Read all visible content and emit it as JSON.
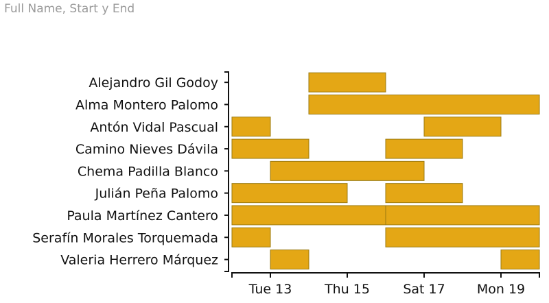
{
  "header": {
    "title": "Full Name, Start y End"
  },
  "chart_data": {
    "type": "bar",
    "orientation": "horizontal-gantt",
    "title": "",
    "xlabel": "",
    "ylabel": "",
    "x_domain": [
      "2023-06-12",
      "2023-06-20"
    ],
    "x_ticks": [
      {
        "label": "Tue 13",
        "date": "2023-06-13"
      },
      {
        "label": "Thu 15",
        "date": "2023-06-15"
      },
      {
        "label": "Sat 17",
        "date": "2023-06-17"
      },
      {
        "label": "Mon 19",
        "date": "2023-06-19"
      }
    ],
    "bar_color": "#E4A715",
    "grid": false,
    "rows": [
      {
        "name": "Alejandro Gil Godoy",
        "segments": [
          {
            "start": "2023-06-14",
            "end": "2023-06-16"
          }
        ]
      },
      {
        "name": "Alma Montero Palomo",
        "segments": [
          {
            "start": "2023-06-14",
            "end": "2023-06-20"
          }
        ]
      },
      {
        "name": "Antón Vidal Pascual",
        "segments": [
          {
            "start": "2023-06-12",
            "end": "2023-06-13"
          },
          {
            "start": "2023-06-17",
            "end": "2023-06-19"
          }
        ]
      },
      {
        "name": "Camino Nieves Dávila",
        "segments": [
          {
            "start": "2023-06-12",
            "end": "2023-06-14"
          },
          {
            "start": "2023-06-16",
            "end": "2023-06-18"
          }
        ]
      },
      {
        "name": "Chema Padilla Blanco",
        "segments": [
          {
            "start": "2023-06-13",
            "end": "2023-06-17"
          }
        ]
      },
      {
        "name": "Julián Peña Palomo",
        "segments": [
          {
            "start": "2023-06-12",
            "end": "2023-06-15"
          },
          {
            "start": "2023-06-16",
            "end": "2023-06-18"
          }
        ]
      },
      {
        "name": "Paula Martínez Cantero",
        "segments": [
          {
            "start": "2023-06-12",
            "end": "2023-06-16"
          },
          {
            "start": "2023-06-16",
            "end": "2023-06-20"
          }
        ]
      },
      {
        "name": "Serafín Morales Torquemada",
        "segments": [
          {
            "start": "2023-06-12",
            "end": "2023-06-13"
          },
          {
            "start": "2023-06-16",
            "end": "2023-06-20"
          }
        ]
      },
      {
        "name": "Valeria Herrero Márquez",
        "segments": [
          {
            "start": "2023-06-13",
            "end": "2023-06-14"
          },
          {
            "start": "2023-06-19",
            "end": "2023-06-20"
          }
        ]
      }
    ]
  }
}
